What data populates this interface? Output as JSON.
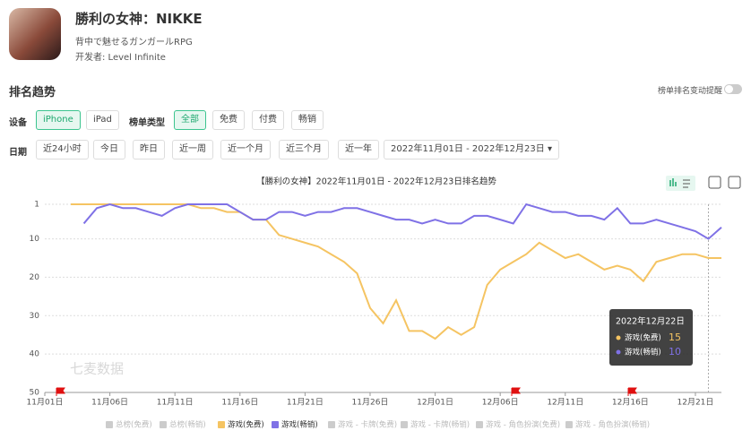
{
  "header": {
    "app_name": "勝利の女神：NIKKE",
    "subtitle": "背中で魅せるガンガールRPG",
    "developer": "开发者: Level Infinite"
  },
  "section_title": "排名趋势",
  "toggle_label": "榜单排名变动提醒",
  "filters": {
    "device_label": "设备",
    "devices": [
      "iPhone",
      "iPad"
    ],
    "active_device_index": 0,
    "list_type_label": "榜单类型",
    "list_types": [
      "全部",
      "免费",
      "付费",
      "畅销"
    ],
    "active_list_type_index": 0,
    "date_label": "日期",
    "date_ranges": [
      "近24小时",
      "今日",
      "昨日",
      "近一周",
      "近一个月",
      "近三个月",
      "近一年"
    ],
    "date_picker": "2022年11月01日 - 2022年12月23日"
  },
  "chart_data": {
    "type": "line",
    "title": "【勝利の女神】2022年11月01日 - 2022年12月23日排名趋势",
    "watermark": "七麦数据",
    "categories": [
      "11月01日",
      null,
      null,
      null,
      null,
      "11月06日",
      null,
      null,
      null,
      null,
      "11月11日",
      null,
      null,
      null,
      null,
      "11月16日",
      null,
      null,
      null,
      null,
      "11月21日",
      null,
      null,
      null,
      null,
      "11月26日",
      null,
      null,
      null,
      null,
      "12月01日",
      null,
      null,
      null,
      null,
      "12月06日",
      null,
      null,
      null,
      null,
      "12月11日",
      null,
      null,
      null,
      null,
      "12月16日",
      null,
      null,
      null,
      null,
      "12月21日",
      null,
      null
    ],
    "ylim": [
      1,
      50
    ],
    "y_inverted": true,
    "yticks": [
      1,
      10,
      20,
      30,
      40,
      50
    ],
    "grid": true,
    "series": [
      {
        "name": "总榜(免费)",
        "color": "#cccccc",
        "active": false
      },
      {
        "name": "总榜(畅销)",
        "color": "#cccccc",
        "active": false
      },
      {
        "name": "游戏(免费)",
        "color": "#f5c462",
        "active": true,
        "values": [
          null,
          null,
          1,
          1,
          1,
          1,
          1,
          1,
          1,
          1,
          1,
          1,
          2,
          2,
          3,
          3,
          5,
          5,
          9,
          10,
          11,
          12,
          14,
          16,
          19,
          28,
          32,
          26,
          34,
          34,
          36,
          33,
          35,
          33,
          22,
          18,
          16,
          14,
          11,
          13,
          15,
          14,
          16,
          18,
          17,
          18,
          21,
          16,
          15,
          14,
          14,
          15,
          15
        ]
      },
      {
        "name": "游戏(畅销)",
        "color": "#7f71e6",
        "active": true,
        "values": [
          null,
          null,
          null,
          6,
          2,
          1,
          2,
          2,
          3,
          4,
          2,
          1,
          1,
          1,
          1,
          3,
          5,
          5,
          3,
          3,
          4,
          3,
          3,
          2,
          2,
          3,
          4,
          5,
          5,
          6,
          5,
          6,
          6,
          4,
          4,
          5,
          6,
          1,
          2,
          3,
          3,
          4,
          4,
          5,
          2,
          6,
          6,
          5,
          6,
          7,
          8,
          10,
          7
        ]
      },
      {
        "name": "游戏 - 卡牌(免费)",
        "color": "#cccccc",
        "active": false
      },
      {
        "name": "游戏 - 卡牌(畅销)",
        "color": "#cccccc",
        "active": false
      },
      {
        "name": "游戏 - 角色扮演(免费)",
        "color": "#cccccc",
        "active": false
      },
      {
        "name": "游戏 - 角色扮演(畅销)",
        "color": "#cccccc",
        "active": false
      }
    ],
    "tooltip": {
      "title": "2022年12月22日",
      "index": 51
    }
  }
}
